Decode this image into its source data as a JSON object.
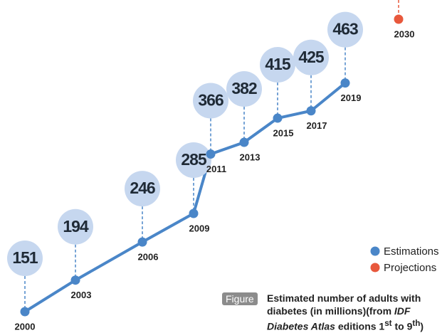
{
  "chart_data": {
    "type": "line",
    "categories": [
      "2000",
      "2003",
      "2006",
      "2009",
      "2011",
      "2013",
      "2015",
      "2017",
      "2019",
      "2030"
    ],
    "series": [
      {
        "name": "Estimations",
        "color": "#4a86c8",
        "values": [
          151,
          194,
          246,
          285,
          366,
          382,
          415,
          425,
          463,
          null
        ]
      },
      {
        "name": "Projections",
        "color": "#e8583c",
        "values": [
          null,
          null,
          null,
          null,
          null,
          null,
          null,
          null,
          null,
          550
        ]
      }
    ],
    "bubble_color": "#c6d7ef",
    "legend": "bottom-right",
    "caption": {
      "label": "Figure",
      "line1": "Estimated number of adults with",
      "line2": "diabetes (in millions)(from ",
      "italic1": "IDF",
      "italic2": "Diabetes Atlas",
      "text3": " editions 1",
      "sup1": "st",
      "text4": " to 9",
      "sup2": "th",
      "end": ")"
    }
  }
}
